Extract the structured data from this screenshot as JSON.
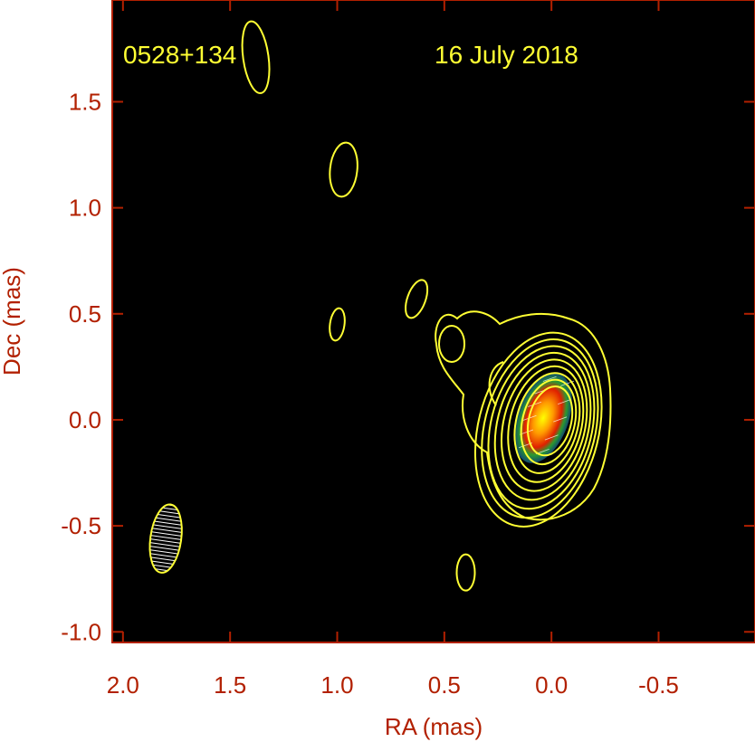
{
  "chart_data": {
    "type": "contour",
    "source_label": "0528+134",
    "date_label": "16 July 2018",
    "xlabel": "RA (mas)",
    "ylabel": "Dec (mas)",
    "xlim": [
      2.05,
      -0.95
    ],
    "ylim": [
      -1.05,
      1.98
    ],
    "xticks": [
      2.0,
      1.5,
      1.0,
      0.5,
      0.0,
      -0.5
    ],
    "xtick_labels": [
      "2.0",
      "1.5",
      "1.0",
      "0.5",
      "0.0",
      "-0.5"
    ],
    "yticks": [
      -1.0,
      -0.5,
      0.0,
      0.5,
      1.0,
      1.5
    ],
    "ytick_labels": [
      "-1.0",
      "-0.5",
      "0.0",
      "0.5",
      "1.0",
      "1.5"
    ],
    "core_position": [
      0.0,
      0.0
    ],
    "beam_center": [
      1.8,
      -0.56
    ],
    "contour_levels_count": 10,
    "isolated_components": [
      {
        "ra": 1.38,
        "dec": 1.71
      },
      {
        "ra": 0.97,
        "dec": 1.18
      },
      {
        "ra": 0.63,
        "dec": 0.57
      },
      {
        "ra": 1.0,
        "dec": 0.45
      },
      {
        "ra": 0.4,
        "dec": -0.72
      }
    ],
    "colors": {
      "background": "#000000",
      "contour": "#ffff33",
      "axis": "#b22000",
      "annotation": "#ffff33"
    }
  }
}
